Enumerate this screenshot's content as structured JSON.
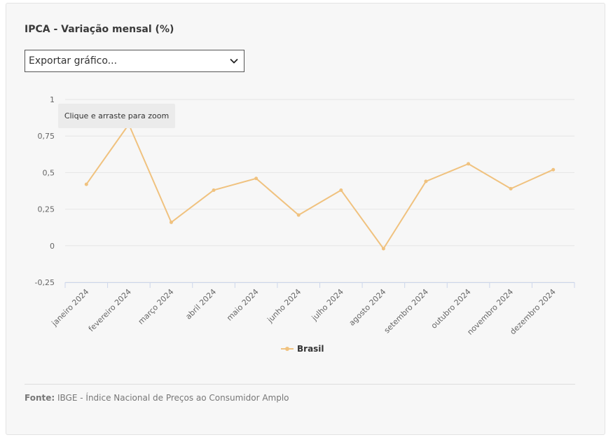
{
  "chart_title": "IPCA - Variação mensal (%)",
  "export": {
    "selected": "Exportar gráfico...",
    "icon": "chevron-down-icon"
  },
  "tooltip_text": "Clique e arraste para zoom",
  "source": {
    "label": "Fonte:",
    "text": "IBGE - Índice Nacional de Preços ao Consumidor Amplo"
  },
  "colors": {
    "series": "#f0c27f",
    "grid": "#e6e6e6",
    "axis": "#ccd6eb",
    "text": "#666666"
  },
  "chart_data": {
    "type": "line",
    "title": "IPCA - Variação mensal (%)",
    "categories": [
      "janeiro 2024",
      "fevereiro 2024",
      "março 2024",
      "abril 2024",
      "maio 2024",
      "junho 2024",
      "julho 2024",
      "agosto 2024",
      "setembro 2024",
      "outubro 2024",
      "novembro 2024",
      "dezembro 2024"
    ],
    "series": [
      {
        "name": "Brasil",
        "values": [
          0.42,
          0.83,
          0.16,
          0.38,
          0.46,
          0.21,
          0.38,
          -0.02,
          0.44,
          0.56,
          0.39,
          0.52
        ]
      }
    ],
    "yticks": [
      "1",
      "0,75",
      "0,5",
      "0,25",
      "0",
      "-0,25"
    ],
    "ytick_values": [
      1,
      0.75,
      0.5,
      0.25,
      0,
      -0.25
    ],
    "ylim": [
      -0.25,
      1
    ],
    "grid": true,
    "legend": "bottom-center"
  }
}
